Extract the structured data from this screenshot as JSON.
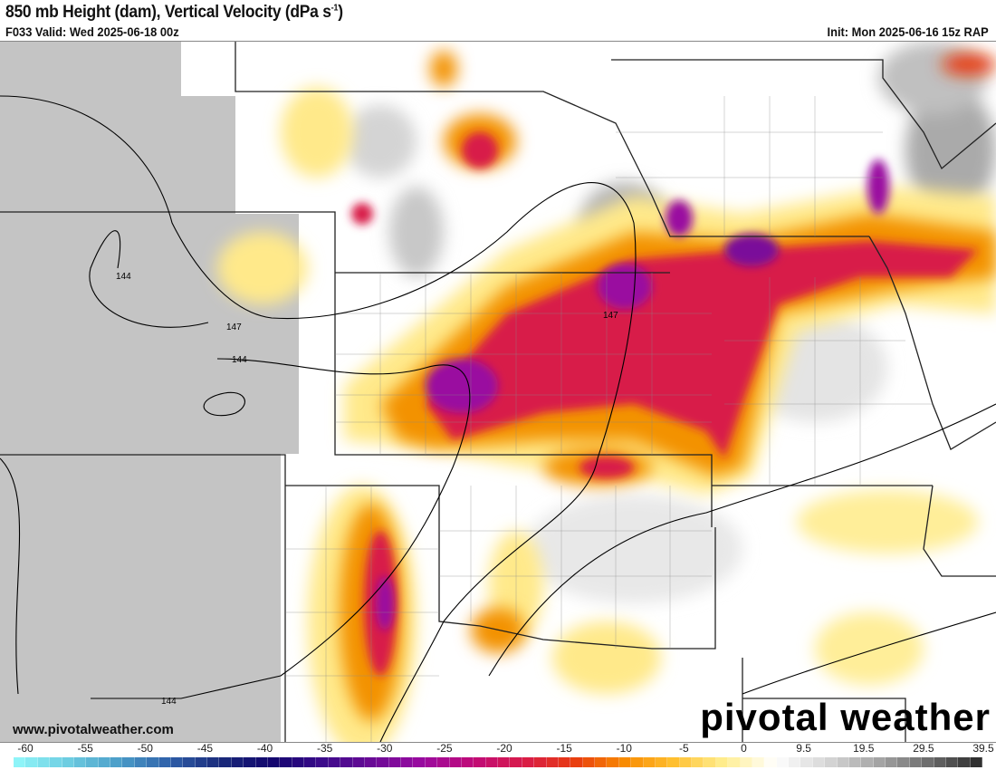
{
  "header": {
    "title": "850 mb Height (dam), Vertical Velocity (dPa s",
    "title_sup": "-1",
    "title_end": ")",
    "valid": "F033 Valid: Wed 2025-06-18 00z",
    "init": "Init: Mon 2025-06-16 15z RAP"
  },
  "map": {
    "contour_labels": [
      "144",
      "147",
      "144",
      "147",
      "144"
    ],
    "colors": {
      "terrain_mask": "#c4c4c4",
      "upward_strong": "#9a0aa0",
      "upward_mid": "#d4145a",
      "upward_weak": "#f08c00",
      "upward_faint": "#ffe98a",
      "downward": "#b0b0b0"
    }
  },
  "footer": {
    "url": "www.pivotalweather.com",
    "brand": "pivotal weather"
  },
  "colorbar": {
    "labels": [
      "-60",
      "-55",
      "-50",
      "-45",
      "-40",
      "-35",
      "-30",
      "-25",
      "-20",
      "-15",
      "-10",
      "-5",
      "0",
      "9.5",
      "19.5",
      "29.5",
      "39.5"
    ],
    "stops": [
      "#8ef4f8",
      "#6ccbe0",
      "#4a9cc8",
      "#2e5ea8",
      "#1a2a7a",
      "#12066e",
      "#3a0a8a",
      "#6a0a96",
      "#9a0aa0",
      "#c00a78",
      "#d81a4a",
      "#e83a10",
      "#f88a00",
      "#ffc030",
      "#ffee90",
      "#ffffff",
      "#d8d8d8",
      "#a8a8a8",
      "#707070",
      "#303030"
    ]
  }
}
